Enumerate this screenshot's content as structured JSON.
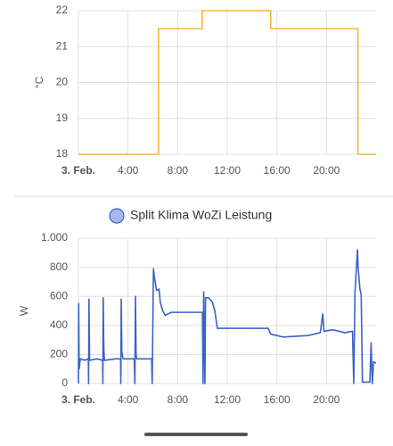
{
  "chart_data": [
    {
      "type": "line",
      "ylabel": "°C",
      "x": [
        0,
        6.46,
        6.46,
        9.98,
        9.98,
        15.5,
        15.5,
        22.54,
        22.54,
        24
      ],
      "values": [
        18,
        18,
        21.5,
        21.5,
        22,
        22,
        21.5,
        21.5,
        18,
        18
      ],
      "color": "#f2b63c",
      "xlim": [
        0,
        24
      ],
      "xticks": [
        {
          "value": 0,
          "label": "3. Feb."
        },
        {
          "value": 4,
          "label": "4:00"
        },
        {
          "value": 8,
          "label": "8:00"
        },
        {
          "value": 12,
          "label": "12:00"
        },
        {
          "value": 16,
          "label": "16:00"
        },
        {
          "value": 20,
          "label": "20:00"
        }
      ],
      "ylim": [
        18,
        22
      ],
      "yticks": [
        18,
        19,
        20,
        21,
        22
      ],
      "grid": true
    },
    {
      "type": "line",
      "ylabel": "W",
      "x": [
        0,
        0.02,
        0.06,
        0.15,
        0.5,
        0.8,
        0.82,
        0.85,
        0.9,
        1.5,
        1.95,
        1.97,
        2.0,
        2.05,
        2.1,
        3.0,
        3.4,
        3.42,
        3.45,
        3.5,
        3.6,
        4.5,
        4.55,
        4.6,
        4.65,
        4.7,
        5.9,
        5.95,
        6.05,
        6.15,
        6.3,
        6.5,
        6.6,
        6.8,
        7.0,
        7.5,
        10.0,
        10.05,
        10.1,
        10.2,
        10.25,
        10.5,
        10.8,
        11.0,
        11.2,
        15.3,
        15.5,
        16.5,
        18.5,
        19.5,
        19.7,
        19.8,
        20.5,
        21.5,
        22.1,
        22.2,
        22.3,
        22.5,
        22.55,
        22.7,
        22.8,
        22.9,
        23.5,
        23.6,
        23.7,
        23.8,
        24.0
      ],
      "series": [
        {
          "name": "Split Klima WoZi Leistung",
          "color": "#3a62c9",
          "values": [
            0,
            550,
            100,
            170,
            160,
            170,
            0,
            580,
            160,
            170,
            160,
            0,
            590,
            230,
            160,
            170,
            170,
            0,
            580,
            220,
            170,
            170,
            0,
            600,
            200,
            170,
            170,
            0,
            790,
            720,
            640,
            650,
            560,
            500,
            470,
            490,
            490,
            0,
            630,
            0,
            590,
            590,
            560,
            500,
            380,
            380,
            340,
            320,
            330,
            350,
            480,
            360,
            370,
            350,
            360,
            0,
            630,
            920,
            800,
            650,
            610,
            10,
            10,
            280,
            0,
            150,
            140
          ]
        }
      ],
      "xlim": [
        0,
        24
      ],
      "xticks": [
        {
          "value": 0,
          "label": "3. Feb."
        },
        {
          "value": 4,
          "label": "4:00"
        },
        {
          "value": 8,
          "label": "8:00"
        },
        {
          "value": 12,
          "label": "12:00"
        },
        {
          "value": 16,
          "label": "16:00"
        },
        {
          "value": 20,
          "label": "20:00"
        }
      ],
      "ylim": [
        0,
        1000
      ],
      "yticks": [
        0,
        200,
        400,
        600,
        800,
        {
          "value": 1000,
          "label": "1.000"
        }
      ],
      "grid": true
    }
  ]
}
